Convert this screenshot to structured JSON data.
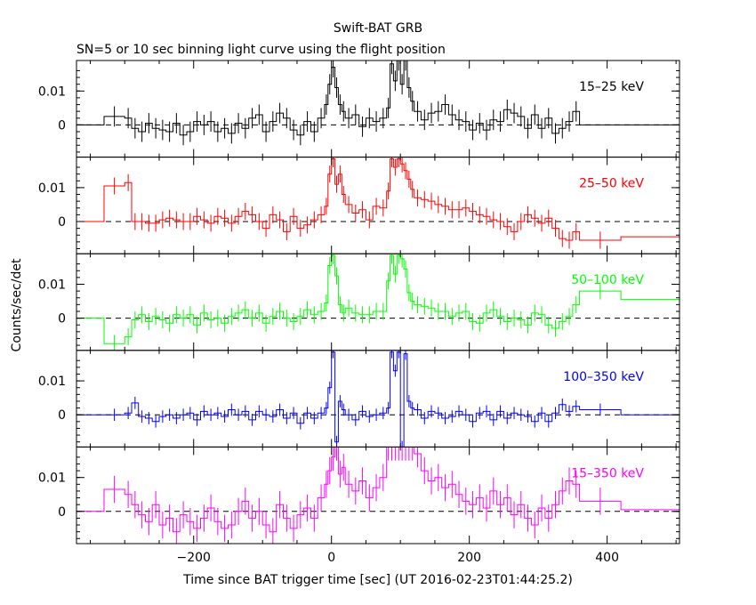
{
  "title": "Swift-BAT GRB",
  "subtitle": "SN=5 or 10 sec binning light curve using the flight position",
  "ylabel": "Counts/sec/det",
  "xlabel": "Time since BAT trigger time [sec] (UT 2016-02-23T01:44:25.2)",
  "colors": {
    "15-25": "#000000",
    "25-50": "#ff0000",
    "50-100": "#00ff00",
    "100-350": "#0000ff",
    "15-350": "#ff00ff"
  },
  "chart_data": {
    "type": "line",
    "title": "Swift-BAT GRB",
    "subtitle": "SN=5 or 10 sec binning light curve using the flight position",
    "xlabel": "Time since BAT trigger time [sec] (UT 2016-02-23T01:44:25.2)",
    "ylabel": "Counts/sec/det",
    "xlim": [
      -370,
      505
    ],
    "ylim": [
      -0.0095,
      0.019
    ],
    "xticks": [
      -200,
      0,
      200,
      400
    ],
    "xtick_labels": [
      "−200",
      "0",
      "200",
      "400"
    ],
    "yticks": [
      0,
      0.01
    ],
    "ytick_labels": [
      "0",
      "0.01"
    ],
    "grid": false,
    "reference_line": 0,
    "panels": [
      {
        "name": "15–25 keV",
        "color_key": "15-25",
        "series": [
          {
            "x": [
              -370,
              -330,
              -300,
              -290,
              -280,
              -270,
              -260,
              -250,
              -240,
              -230,
              -220,
              -210,
              -200,
              -190,
              -180,
              -170,
              -160,
              -150,
              -140,
              -130,
              -120,
              -110,
              -100,
              -90,
              -80,
              -70,
              -60,
              -50,
              -40,
              -30,
              -20,
              -10,
              -5,
              0,
              5,
              10,
              15,
              20,
              30,
              40,
              50,
              60,
              70,
              80,
              85,
              90,
              95,
              100,
              105,
              110,
              115,
              120,
              130,
              140,
              150,
              160,
              170,
              180,
              190,
              200,
              210,
              220,
              230,
              240,
              250,
              260,
              270,
              280,
              290,
              300,
              310,
              320,
              330,
              340,
              350,
              360,
              505
            ],
            "y": [
              0,
              0.0025,
              0.002,
              -0.001,
              -0.002,
              0.0005,
              -0.001,
              -0.0015,
              -0.002,
              0.0005,
              -0.003,
              -0.002,
              0.001,
              0,
              0.001,
              -0.002,
              -0.001,
              -0.0025,
              0.0005,
              -0.001,
              0.002,
              0.003,
              -0.002,
              0.001,
              0.0035,
              0.002,
              -0.0015,
              -0.003,
              0.001,
              -0.002,
              0.002,
              0.006,
              0.012,
              0.017,
              0.011,
              0.006,
              0.004,
              0.002,
              0.003,
              -0.0005,
              0.002,
              0.001,
              0.002,
              0.005,
              0.018,
              0.013,
              0.019,
              0.012,
              0.019,
              0.011,
              0.007,
              0.004,
              0.0015,
              0.0035,
              0.004,
              0.006,
              0.003,
              0.0015,
              0.001,
              -0.0015,
              0.0005,
              -0.0015,
              0.0015,
              0.001,
              0.0045,
              0.0035,
              0.0025,
              -0.001,
              0.003,
              -0.001,
              0.002,
              -0.0025,
              -0.001,
              0.001,
              0.004,
              0,
              0
            ],
            "err": 0.003
          }
        ]
      },
      {
        "name": "25–50 keV",
        "color_key": "25-50",
        "series": [
          {
            "x": [
              -370,
              -330,
              -300,
              -290,
              -280,
              -270,
              -260,
              -250,
              -240,
              -230,
              -220,
              -210,
              -200,
              -190,
              -180,
              -170,
              -160,
              -150,
              -140,
              -130,
              -120,
              -110,
              -100,
              -90,
              -80,
              -70,
              -60,
              -50,
              -40,
              -30,
              -20,
              -10,
              -5,
              0,
              5,
              10,
              15,
              20,
              30,
              40,
              50,
              60,
              70,
              80,
              85,
              90,
              95,
              100,
              105,
              110,
              115,
              120,
              130,
              140,
              150,
              160,
              170,
              180,
              190,
              200,
              210,
              220,
              230,
              240,
              250,
              260,
              270,
              280,
              290,
              300,
              310,
              320,
              330,
              340,
              350,
              360,
              420,
              505
            ],
            "y": [
              0,
              0.0105,
              0.0115,
              0,
              0,
              -0.0005,
              -0.0005,
              0.0005,
              0.001,
              0.0005,
              0,
              0,
              0.0015,
              0.0005,
              -0.0005,
              0.0015,
              0.001,
              -0.0005,
              0.0015,
              0.003,
              0.002,
              0,
              -0.002,
              0.002,
              0.0005,
              -0.003,
              0.0015,
              -0.002,
              -0.001,
              0.0005,
              0.002,
              0.0045,
              0.014,
              0.0185,
              0.011,
              0.014,
              0.008,
              0.005,
              0.0025,
              0.0035,
              0.0005,
              0.0045,
              0.004,
              0.009,
              0.0185,
              0.016,
              0.0185,
              0.017,
              0.015,
              0.0125,
              0.0095,
              0.007,
              0.0065,
              0.006,
              0.005,
              0.0045,
              0.0035,
              0.0035,
              0.004,
              0.003,
              0.002,
              0.0015,
              0.0005,
              0,
              -0.0015,
              -0.003,
              0,
              0.002,
              0.001,
              -0.0005,
              0.001,
              -0.002,
              -0.005,
              -0.0055,
              -0.003,
              -0.0055,
              -0.0045,
              0
            ],
            "err": 0.0025
          }
        ]
      },
      {
        "name": "50–100 keV",
        "color_key": "50-100",
        "series": [
          {
            "x": [
              -370,
              -330,
              -300,
              -290,
              -280,
              -270,
              -260,
              -250,
              -240,
              -230,
              -220,
              -210,
              -200,
              -190,
              -180,
              -170,
              -160,
              -150,
              -140,
              -130,
              -120,
              -110,
              -100,
              -90,
              -80,
              -70,
              -60,
              -50,
              -40,
              -30,
              -20,
              -10,
              -5,
              0,
              5,
              10,
              15,
              20,
              30,
              40,
              50,
              60,
              70,
              80,
              85,
              90,
              95,
              100,
              105,
              110,
              115,
              120,
              130,
              140,
              150,
              160,
              170,
              180,
              190,
              200,
              210,
              220,
              230,
              240,
              250,
              260,
              270,
              280,
              290,
              300,
              310,
              320,
              330,
              340,
              350,
              360,
              420,
              505
            ],
            "y": [
              0,
              -0.0075,
              -0.0055,
              -0.0005,
              0.001,
              -0.001,
              0.0005,
              -0.0005,
              -0.0015,
              0.001,
              0,
              0.001,
              -0.002,
              0.0015,
              -0.0005,
              0,
              -0.0015,
              0.0005,
              0.0015,
              0.0025,
              0,
              0.0015,
              -0.0015,
              0.0005,
              0.002,
              0,
              -0.001,
              0.0005,
              0.0025,
              0.001,
              0.002,
              0.0045,
              0.0155,
              0.0185,
              0.0125,
              0.004,
              0.0015,
              0.003,
              0.0015,
              0.001,
              0.001,
              0.002,
              0.002,
              0.011,
              0.0185,
              0.013,
              0.0185,
              0.0175,
              0.0145,
              0.0075,
              0.005,
              0.004,
              0.0035,
              0.003,
              0.002,
              0.002,
              0.0005,
              0.0015,
              0.002,
              -0.001,
              -0.0015,
              0.0015,
              0.0025,
              0.0005,
              -0.001,
              0,
              -0.0005,
              -0.002,
              0.0015,
              0.001,
              -0.002,
              -0.003,
              -0.001,
              0.0005,
              0.004,
              0.008,
              0.0055,
              0
            ],
            "err": 0.0025
          }
        ]
      },
      {
        "name": "100–350 keV",
        "color_key": "100-350",
        "series": [
          {
            "x": [
              -370,
              -330,
              -300,
              -290,
              -280,
              -270,
              -260,
              -250,
              -240,
              -230,
              -220,
              -210,
              -200,
              -190,
              -180,
              -170,
              -160,
              -150,
              -140,
              -130,
              -120,
              -110,
              -100,
              -90,
              -80,
              -70,
              -60,
              -50,
              -40,
              -30,
              -20,
              -10,
              -5,
              0,
              5,
              10,
              15,
              20,
              30,
              40,
              50,
              60,
              70,
              80,
              85,
              90,
              95,
              100,
              105,
              110,
              115,
              120,
              130,
              140,
              150,
              160,
              170,
              180,
              190,
              200,
              210,
              220,
              230,
              240,
              250,
              260,
              270,
              280,
              290,
              300,
              310,
              320,
              330,
              340,
              350,
              360,
              420,
              505
            ],
            "y": [
              0,
              0,
              0.0005,
              0.0035,
              -0.0005,
              -0.001,
              -0.002,
              -0.0005,
              0,
              -0.001,
              0,
              0.0005,
              -0.0015,
              0.001,
              0,
              0.0005,
              -0.0005,
              0.0015,
              0,
              0.001,
              -0.0015,
              0.001,
              0,
              -0.0005,
              0.0015,
              -0.001,
              0.0005,
              -0.0025,
              0.0005,
              -0.001,
              0.0005,
              0.002,
              0.008,
              0.0185,
              -0.008,
              0.004,
              0.0015,
              0,
              -0.0015,
              0.001,
              -0.0005,
              0,
              0.0005,
              0.002,
              0.0185,
              0.013,
              0.0185,
              -0.0095,
              0.018,
              0.004,
              0.002,
              0.0015,
              -0.001,
              0.001,
              0.0005,
              -0.001,
              -0.0005,
              0.001,
              0,
              -0.002,
              0.0005,
              0.001,
              -0.0015,
              0.001,
              -0.001,
              0.0005,
              0,
              -0.0005,
              -0.002,
              0.0005,
              -0.002,
              0.0005,
              0.003,
              0.001,
              0.0025,
              0.0015,
              0,
              0
            ],
            "err": 0.0018
          }
        ]
      },
      {
        "name": "15–350 keV",
        "color_key": "15-350",
        "series": [
          {
            "x": [
              -370,
              -330,
              -300,
              -290,
              -280,
              -270,
              -260,
              -250,
              -240,
              -230,
              -220,
              -210,
              -200,
              -190,
              -180,
              -170,
              -160,
              -150,
              -140,
              -130,
              -120,
              -110,
              -100,
              -90,
              -80,
              -70,
              -60,
              -50,
              -40,
              -30,
              -20,
              -10,
              -5,
              0,
              5,
              10,
              15,
              20,
              30,
              40,
              50,
              60,
              70,
              80,
              85,
              90,
              95,
              100,
              105,
              110,
              115,
              120,
              130,
              140,
              150,
              160,
              170,
              180,
              190,
              200,
              210,
              220,
              230,
              240,
              250,
              260,
              270,
              280,
              290,
              300,
              310,
              320,
              330,
              340,
              350,
              360,
              420,
              505
            ],
            "y": [
              0,
              0.0065,
              0.005,
              0.002,
              -0.001,
              -0.003,
              0.002,
              -0.004,
              -0.002,
              -0.006,
              -0.001,
              -0.003,
              -0.005,
              -0.002,
              0.001,
              -0.003,
              -0.005,
              -0.004,
              0,
              0.003,
              -0.002,
              0,
              -0.004,
              -0.006,
              0.002,
              -0.002,
              -0.005,
              -0.001,
              0.001,
              -0.002,
              0.004,
              0.008,
              0.012,
              0.016,
              0.019,
              0.011,
              0.013,
              0.008,
              0.006,
              0.009,
              0.004,
              0.007,
              0.01,
              0.019,
              0.019,
              0.019,
              0.019,
              0.019,
              0.019,
              0.019,
              0.019,
              0.017,
              0.012,
              0.009,
              0.01,
              0.007,
              0.008,
              0.005,
              0.003,
              0.002,
              0.004,
              0.001,
              0.006,
              0.002,
              0.004,
              -0.001,
              0.002,
              -0.002,
              -0.004,
              0.001,
              -0.002,
              0.002,
              0.006,
              0.009,
              0.008,
              0.003,
              0.0005,
              0
            ],
            "err": 0.004
          }
        ]
      }
    ]
  }
}
